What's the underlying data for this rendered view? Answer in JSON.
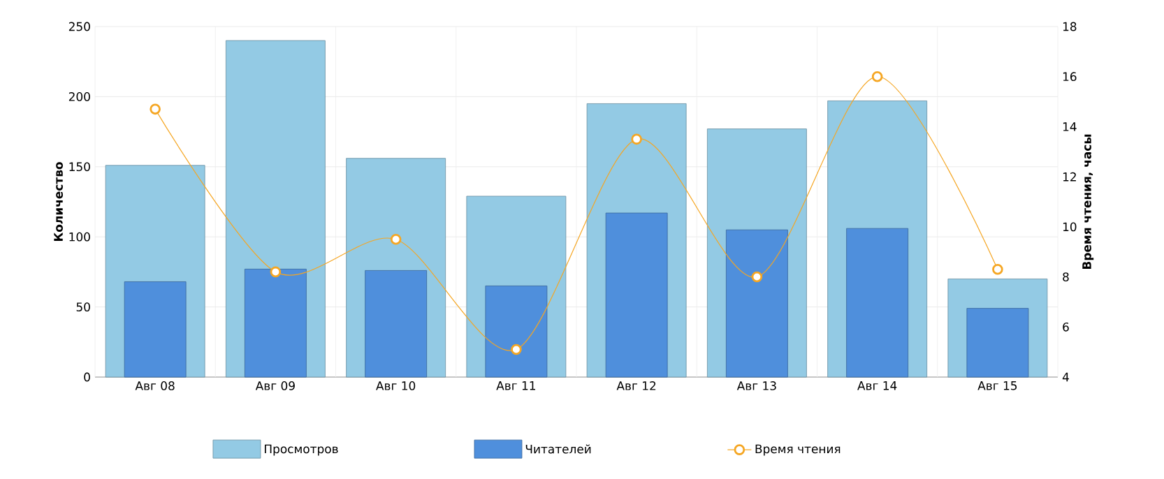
{
  "chart_data": {
    "type": "bar",
    "categories": [
      "Авг 08",
      "Авг 09",
      "Авг 10",
      "Авг 11",
      "Авг 12",
      "Авг 13",
      "Авг 14",
      "Авг 15"
    ],
    "ylabel": "Количество",
    "y2label": "Время чтения, часы",
    "ylim": [
      0,
      250
    ],
    "yticks": [
      0,
      50,
      100,
      150,
      200,
      250
    ],
    "y2lim": [
      4,
      18
    ],
    "y2ticks": [
      4,
      6,
      8,
      10,
      12,
      14,
      16,
      18
    ],
    "grid": true,
    "legend": "bottom",
    "series": [
      {
        "name": "Просмотров",
        "color": "#93cae4",
        "values": [
          151,
          240,
          156,
          129,
          195,
          177,
          197,
          70
        ]
      },
      {
        "name": "Читателей",
        "color": "#4f8fdc",
        "values": [
          68,
          77,
          76,
          65,
          117,
          105,
          106,
          49
        ]
      },
      {
        "name": "Время чтения",
        "type": "line",
        "axis": "y2",
        "marker": "circle",
        "color": "#f5a623",
        "values": [
          14.7,
          8.2,
          9.5,
          5.1,
          13.5,
          8.0,
          16.0,
          8.3
        ]
      }
    ]
  }
}
